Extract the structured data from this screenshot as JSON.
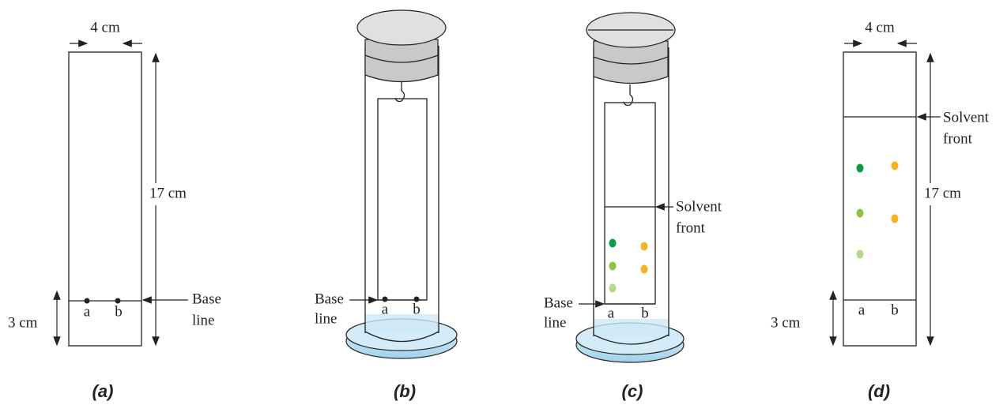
{
  "panels": [
    {
      "caption": "(a)",
      "width_label": "4 cm",
      "height_label": "17 cm",
      "base_label": "3 cm",
      "spots": [
        "a",
        "b"
      ],
      "baseline_label": [
        "Base",
        "line"
      ]
    },
    {
      "caption": "(b)",
      "spots": [
        "a",
        "b"
      ],
      "baseline_label": [
        "Base",
        "line"
      ]
    },
    {
      "caption": "(c)",
      "spots": [
        "a",
        "b"
      ],
      "baseline_label": [
        "Base",
        "line"
      ],
      "front_label": [
        "Solvent",
        "front"
      ]
    },
    {
      "caption": "(d)",
      "width_label": "4 cm",
      "height_label": "17 cm",
      "base_label": "3 cm",
      "spots": [
        "a",
        "b"
      ],
      "front_label": [
        "Solvent",
        "front"
      ]
    }
  ]
}
